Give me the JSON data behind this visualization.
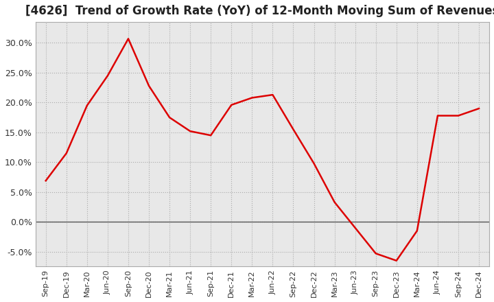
{
  "title": "[4626]  Trend of Growth Rate (YoY) of 12-Month Moving Sum of Revenues",
  "title_fontsize": 12,
  "line_color": "#dd0000",
  "plot_bg_color": "#e8e8e8",
  "fig_bg_color": "#ffffff",
  "grid_color": "#aaaaaa",
  "zero_line_color": "#555555",
  "ylim": [
    -0.075,
    0.335
  ],
  "yticks": [
    -0.05,
    0.0,
    0.05,
    0.1,
    0.15,
    0.2,
    0.25,
    0.3
  ],
  "ytick_labels": [
    "-5.0%",
    "0.0%",
    "5.0%",
    "10.0%",
    "15.0%",
    "20.0%",
    "25.0%",
    "30.0%"
  ],
  "x_labels": [
    "Sep-19",
    "Dec-19",
    "Mar-20",
    "Jun-20",
    "Sep-20",
    "Dec-20",
    "Mar-21",
    "Jun-21",
    "Sep-21",
    "Dec-21",
    "Mar-22",
    "Jun-22",
    "Sep-22",
    "Dec-22",
    "Mar-23",
    "Jun-23",
    "Sep-23",
    "Dec-23",
    "Mar-24",
    "Jun-24",
    "Sep-24",
    "Dec-24"
  ],
  "values": [
    0.069,
    0.115,
    0.195,
    0.245,
    0.307,
    0.228,
    0.175,
    0.152,
    0.145,
    0.196,
    0.208,
    0.213,
    0.155,
    0.098,
    0.033,
    -0.01,
    -0.053,
    -0.065,
    -0.015,
    0.178,
    0.178,
    0.19
  ]
}
